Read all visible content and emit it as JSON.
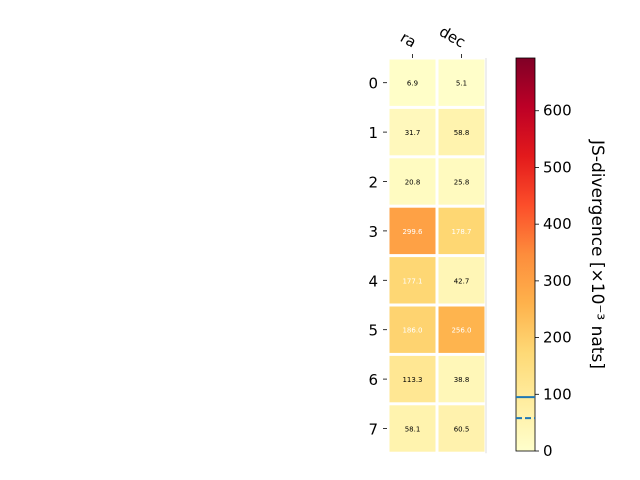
{
  "chart_data": {
    "type": "heatmap",
    "columns": [
      "ra",
      "dec"
    ],
    "rows": [
      "0",
      "1",
      "2",
      "3",
      "4",
      "5",
      "6",
      "7"
    ],
    "values": [
      [
        6.9,
        5.1
      ],
      [
        31.7,
        58.8
      ],
      [
        20.8,
        25.8
      ],
      [
        299.6,
        178.7
      ],
      [
        177.1,
        42.7
      ],
      [
        186.0,
        256.0
      ],
      [
        113.3,
        38.8
      ],
      [
        58.1,
        60.5
      ]
    ],
    "labels": [
      [
        "6.9",
        "5.1"
      ],
      [
        "31.7",
        "58.8"
      ],
      [
        "20.8",
        "25.8"
      ],
      [
        "299.6",
        "178.7"
      ],
      [
        "177.1",
        "42.7"
      ],
      [
        "186.0",
        "256.0"
      ],
      [
        "113.3",
        "38.8"
      ],
      [
        "58.1",
        "60.5"
      ]
    ],
    "colorbar": {
      "label": "JS-divergence [×10⁻³ nats]",
      "range": [
        0,
        693
      ],
      "ticks": [
        0,
        100,
        200,
        300,
        400,
        500,
        600
      ],
      "colormap": "YlOrRd",
      "solid_line": 95,
      "dashed_line": 58
    }
  }
}
